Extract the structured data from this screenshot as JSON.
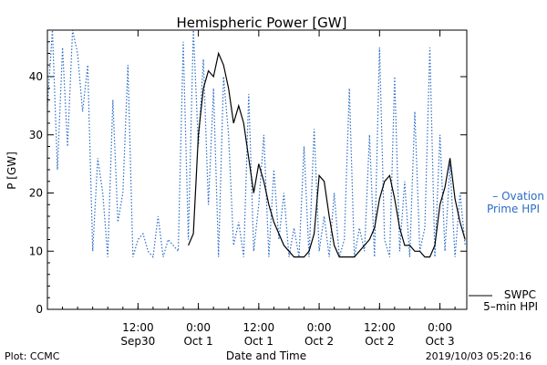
{
  "chart_data": {
    "type": "line",
    "title": "Hemispheric Power [GW]",
    "ylabel": "P [GW]",
    "xlabel": "Date and Time",
    "ylim": [
      0,
      48
    ],
    "yticks": [
      0,
      10,
      20,
      30,
      40
    ],
    "xlim": [
      "2019-09-29T18:00",
      "2019-10-03T05:20"
    ],
    "xticks": [
      {
        "t": "2019-09-30T12:00",
        "line1": "12:00",
        "line2": "Sep30"
      },
      {
        "t": "2019-10-01T00:00",
        "line1": "0:00",
        "line2": "Oct 1"
      },
      {
        "t": "2019-10-01T12:00",
        "line1": "12:00",
        "line2": "Oct 1"
      },
      {
        "t": "2019-10-02T00:00",
        "line1": "0:00",
        "line2": "Oct 2"
      },
      {
        "t": "2019-10-02T12:00",
        "line1": "12:00",
        "line2": "Oct 2"
      },
      {
        "t": "2019-10-03T00:00",
        "line1": "0:00",
        "line2": "Oct 3"
      }
    ],
    "grid": false,
    "series": [
      {
        "name": "Ovation Prime HPI",
        "label_lines": [
          "– Ovation",
          "Prime HPI"
        ],
        "style": "dotted",
        "color": "#2b6cc4",
        "x": [
          "2019-09-29T18:00",
          "2019-09-29T19:00",
          "2019-09-29T20:00",
          "2019-09-29T21:00",
          "2019-09-29T22:00",
          "2019-09-29T23:00",
          "2019-09-30T00:00",
          "2019-09-30T01:00",
          "2019-09-30T02:00",
          "2019-09-30T03:00",
          "2019-09-30T04:00",
          "2019-09-30T05:00",
          "2019-09-30T06:00",
          "2019-09-30T07:00",
          "2019-09-30T08:00",
          "2019-09-30T09:00",
          "2019-09-30T10:00",
          "2019-09-30T11:00",
          "2019-09-30T12:00",
          "2019-09-30T13:00",
          "2019-09-30T14:00",
          "2019-09-30T15:00",
          "2019-09-30T16:00",
          "2019-09-30T17:00",
          "2019-09-30T18:00",
          "2019-09-30T19:00",
          "2019-09-30T20:00",
          "2019-09-30T21:00",
          "2019-09-30T22:00",
          "2019-09-30T23:00",
          "2019-10-01T00:00",
          "2019-10-01T01:00",
          "2019-10-01T02:00",
          "2019-10-01T03:00",
          "2019-10-01T04:00",
          "2019-10-01T05:00",
          "2019-10-01T06:00",
          "2019-10-01T07:00",
          "2019-10-01T08:00",
          "2019-10-01T09:00",
          "2019-10-01T10:00",
          "2019-10-01T11:00",
          "2019-10-01T12:00",
          "2019-10-01T13:00",
          "2019-10-01T14:00",
          "2019-10-01T15:00",
          "2019-10-01T16:00",
          "2019-10-01T17:00",
          "2019-10-01T18:00",
          "2019-10-01T19:00",
          "2019-10-01T20:00",
          "2019-10-01T21:00",
          "2019-10-01T22:00",
          "2019-10-01T23:00",
          "2019-10-02T00:00",
          "2019-10-02T01:00",
          "2019-10-02T02:00",
          "2019-10-02T03:00",
          "2019-10-02T04:00",
          "2019-10-02T05:00",
          "2019-10-02T06:00",
          "2019-10-02T07:00",
          "2019-10-02T08:00",
          "2019-10-02T09:00",
          "2019-10-02T10:00",
          "2019-10-02T11:00",
          "2019-10-02T12:00",
          "2019-10-02T13:00",
          "2019-10-02T14:00",
          "2019-10-02T15:00",
          "2019-10-02T16:00",
          "2019-10-02T17:00",
          "2019-10-02T18:00",
          "2019-10-02T19:00",
          "2019-10-02T20:00",
          "2019-10-02T21:00",
          "2019-10-02T22:00",
          "2019-10-02T23:00",
          "2019-10-03T00:00",
          "2019-10-03T01:00",
          "2019-10-03T02:00",
          "2019-10-03T03:00",
          "2019-10-03T04:00",
          "2019-10-03T05:00"
        ],
        "y": [
          35,
          48,
          24,
          45,
          28,
          48,
          44,
          34,
          42,
          10,
          26,
          20,
          9,
          36,
          15,
          20,
          42,
          9,
          12,
          13,
          10,
          9,
          16,
          9,
          12,
          11,
          10,
          46,
          12,
          48,
          28,
          43,
          18,
          38,
          9,
          40,
          30,
          11,
          15,
          9,
          37,
          10,
          18,
          30,
          9,
          24,
          12,
          20,
          9,
          14,
          9,
          28,
          9,
          31,
          10,
          16,
          9,
          20,
          9,
          12,
          38,
          9,
          14,
          10,
          30,
          9,
          45,
          12,
          9,
          40,
          10,
          22,
          9,
          34,
          10,
          14,
          45,
          9,
          30,
          10,
          25,
          9,
          20,
          11
        ]
      },
      {
        "name": "SWPC 5-min HPI",
        "label_lines": [
          "SWPC",
          "5–min HPI"
        ],
        "style": "solid",
        "color": "#000000",
        "x": [
          "2019-09-30T22:00",
          "2019-09-30T23:00",
          "2019-10-01T00:00",
          "2019-10-01T01:00",
          "2019-10-01T02:00",
          "2019-10-01T03:00",
          "2019-10-01T04:00",
          "2019-10-01T05:00",
          "2019-10-01T06:00",
          "2019-10-01T07:00",
          "2019-10-01T08:00",
          "2019-10-01T09:00",
          "2019-10-01T10:00",
          "2019-10-01T11:00",
          "2019-10-01T12:00",
          "2019-10-01T13:00",
          "2019-10-01T14:00",
          "2019-10-01T15:00",
          "2019-10-01T16:00",
          "2019-10-01T17:00",
          "2019-10-01T18:00",
          "2019-10-01T19:00",
          "2019-10-01T20:00",
          "2019-10-01T21:00",
          "2019-10-01T22:00",
          "2019-10-01T23:00",
          "2019-10-02T00:00",
          "2019-10-02T01:00",
          "2019-10-02T02:00",
          "2019-10-02T03:00",
          "2019-10-02T04:00",
          "2019-10-02T05:00",
          "2019-10-02T06:00",
          "2019-10-02T07:00",
          "2019-10-02T08:00",
          "2019-10-02T09:00",
          "2019-10-02T10:00",
          "2019-10-02T11:00",
          "2019-10-02T12:00",
          "2019-10-02T13:00",
          "2019-10-02T14:00",
          "2019-10-02T15:00",
          "2019-10-02T16:00",
          "2019-10-02T17:00",
          "2019-10-02T18:00",
          "2019-10-02T19:00",
          "2019-10-02T20:00",
          "2019-10-02T21:00",
          "2019-10-02T22:00",
          "2019-10-02T23:00",
          "2019-10-03T00:00",
          "2019-10-03T01:00",
          "2019-10-03T02:00",
          "2019-10-03T03:00",
          "2019-10-03T04:00",
          "2019-10-03T05:00"
        ],
        "y": [
          11,
          13,
          30,
          38,
          41,
          40,
          44,
          42,
          38,
          32,
          35,
          32,
          26,
          20,
          25,
          22,
          18,
          15,
          13,
          11,
          10,
          9,
          9,
          9,
          10,
          13,
          23,
          22,
          16,
          11,
          9,
          9,
          9,
          9,
          10,
          11,
          12,
          14,
          19,
          22,
          23,
          19,
          14,
          11,
          11,
          10,
          10,
          9,
          9,
          11,
          18,
          21,
          26,
          19,
          15,
          12
        ]
      }
    ],
    "footer_left": "Plot: CCMC",
    "footer_right": "2019/10/03 05:20:16"
  }
}
